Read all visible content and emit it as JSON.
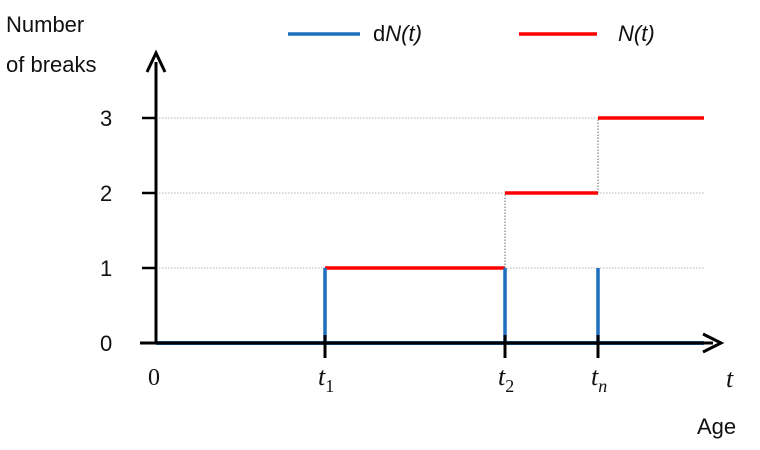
{
  "chart_data": {
    "type": "line",
    "ylabel_lines": [
      "Number",
      "of breaks"
    ],
    "xlabel": "Age",
    "x_axis_symbol": "t",
    "ylim": [
      0,
      3
    ],
    "yticks": [
      "0",
      "1",
      "2",
      "3"
    ],
    "grid": "horizontal dotted at y = 1, 2, 3",
    "legend_position": "top",
    "x_ticks": [
      {
        "base": "0",
        "sub": ""
      },
      {
        "base": "t",
        "sub": "1"
      },
      {
        "base": "t",
        "sub": "2"
      },
      {
        "base": "t",
        "sub": "n"
      }
    ],
    "event_times": [
      "t1",
      "t2",
      "tn"
    ],
    "series": [
      {
        "name_prefix": "d",
        "name_italic": "N(t)",
        "kind": "impulses",
        "color": "#1f6fbf",
        "x": [
          "0",
          "t1",
          "t2",
          "tn",
          "end"
        ],
        "values": [
          0,
          1,
          1,
          1,
          0
        ]
      },
      {
        "name_prefix": "",
        "name_italic": "N(t)",
        "kind": "step",
        "color": "#ff0000",
        "x": [
          "0",
          "t1",
          "t2",
          "tn",
          "end"
        ],
        "values": [
          0,
          1,
          2,
          3,
          3
        ]
      }
    ]
  }
}
